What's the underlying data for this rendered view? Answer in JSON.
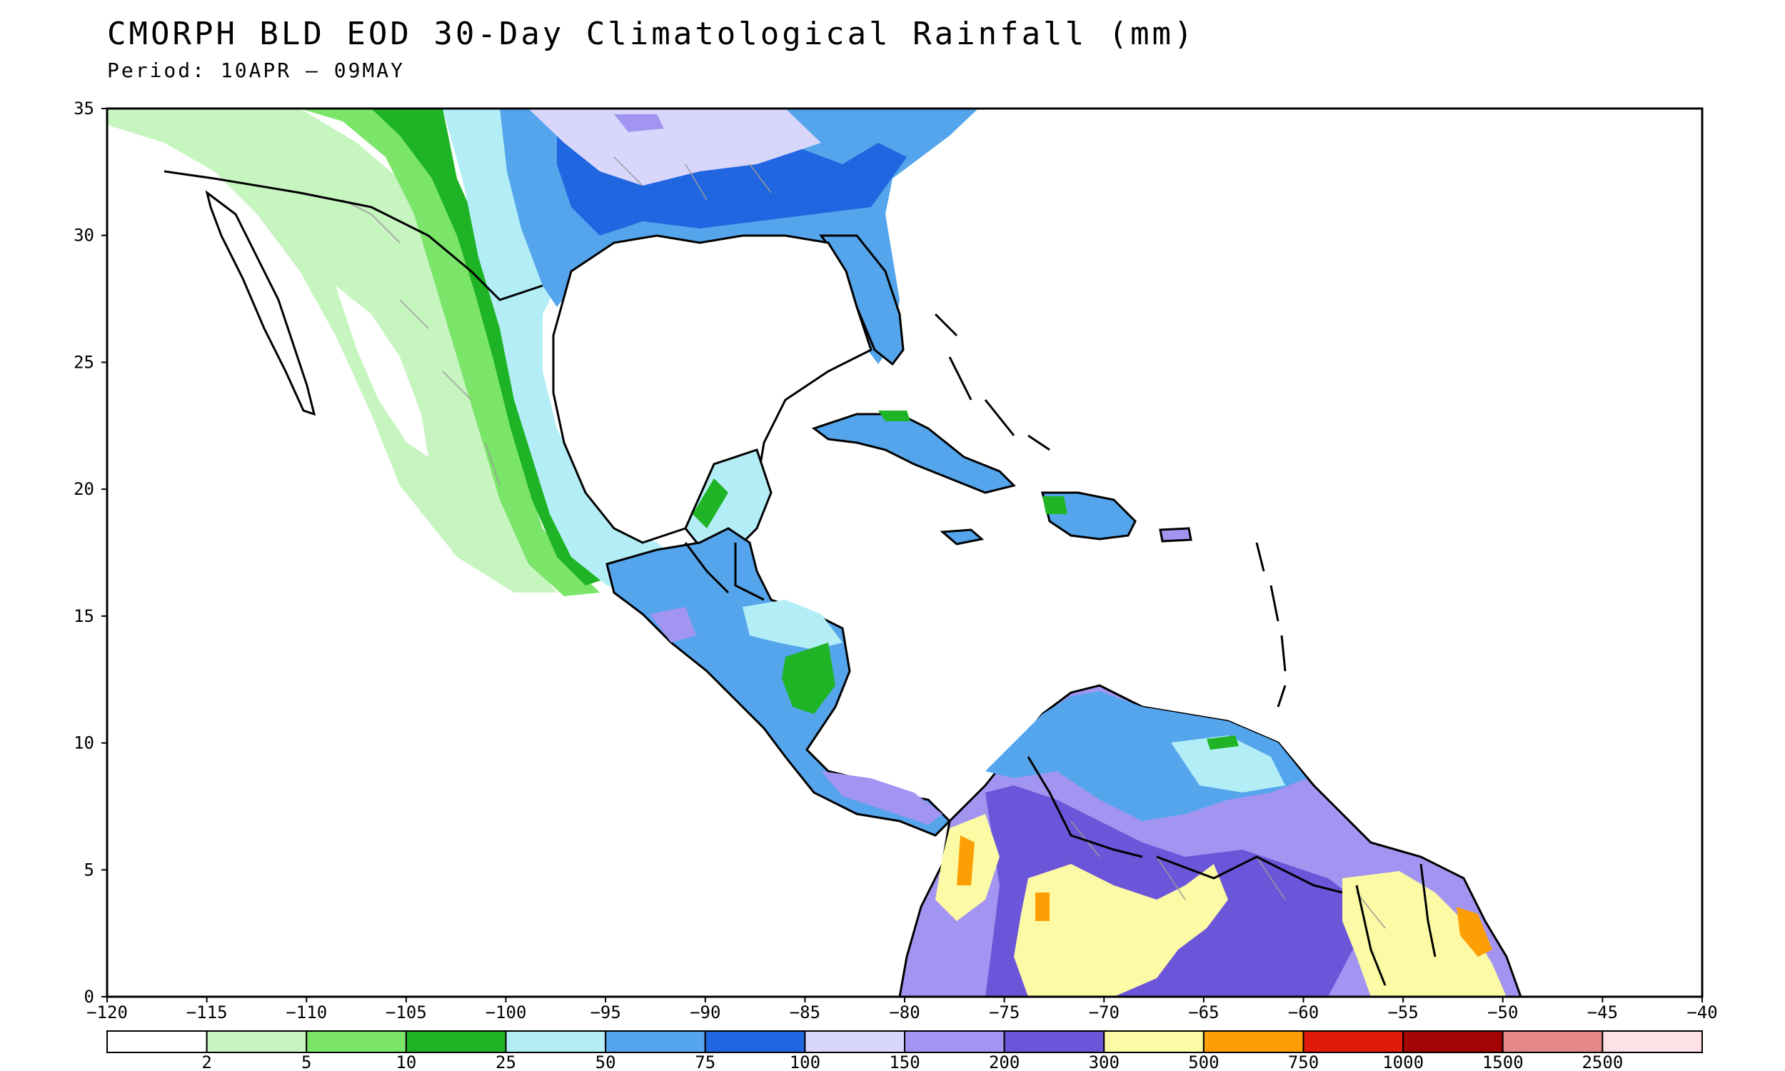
{
  "title": "CMORPH BLD EOD 30-Day Climatological Rainfall (mm)",
  "subtitle": "Period: 10APR – 09MAY",
  "axes": {
    "lon_ticks": [
      "−120",
      "−115",
      "−110",
      "−105",
      "−100",
      "−95",
      "−90",
      "−85",
      "−80",
      "−75",
      "−70",
      "−65",
      "−60",
      "−55",
      "−50",
      "−45",
      "−40"
    ],
    "lat_ticks": [
      "0",
      "5",
      "10",
      "15",
      "20",
      "25",
      "30",
      "35"
    ],
    "lon_range": [
      -120,
      -40
    ],
    "lat_range": [
      0,
      35
    ]
  },
  "legend": {
    "colors": [
      "#ffffff",
      "#c7f5c0",
      "#7be56a",
      "#1fb425",
      "#b3eef6",
      "#55a5ec",
      "#1f66e0",
      "#d8d6fb",
      "#a295f1",
      "#6b55d8",
      "#fdfaa5",
      "#fd9f04",
      "#e01b0b",
      "#a10402",
      "#e38789",
      "#fde1e6"
    ],
    "labels": [
      "2",
      "5",
      "10",
      "25",
      "50",
      "75",
      "100",
      "150",
      "200",
      "300",
      "500",
      "750",
      "1000",
      "1500",
      "2500"
    ]
  }
}
